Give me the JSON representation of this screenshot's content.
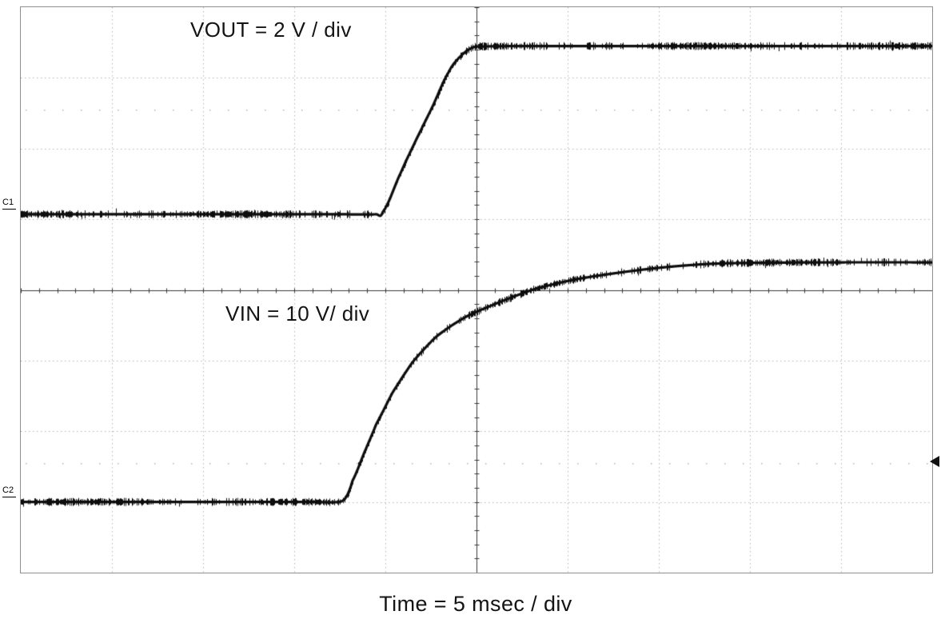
{
  "labels": {
    "vout": "VOUT = 2 V / div",
    "vin": "VIN = 10 V/ div",
    "time": "Time = 5 msec / div",
    "c1": "C1",
    "c2": "C2"
  },
  "chart_data": {
    "type": "line",
    "xlabel": "Time = 5 msec / div",
    "x_scale": {
      "per_div": 5,
      "units": "msec",
      "divisions": 10,
      "total_ms": 50
    },
    "grid": {
      "x_divisions": 10,
      "y_divisions": 8,
      "minor_ticks_per_div": 5,
      "dot_row_y_divs": [
        1.45,
        6.45
      ],
      "style": "dotted"
    },
    "series": [
      {
        "name": "C1",
        "label": "VOUT = 2 V / div",
        "volts_per_div": 2,
        "baseline_y_div": 2.93,
        "final_y_div": 0.55,
        "step_amplitude_volts_approx": 4.8,
        "rise_start_x_div": 3.95,
        "rise_end_x_div": 5.0,
        "noise_seed": 11,
        "points_div": [
          [
            0,
            2.93
          ],
          [
            2.0,
            2.93
          ],
          [
            3.5,
            2.93
          ],
          [
            3.9,
            2.93
          ],
          [
            3.97,
            2.9
          ],
          [
            4.17,
            2.34
          ],
          [
            4.34,
            1.87
          ],
          [
            4.52,
            1.4
          ],
          [
            4.69,
            0.93
          ],
          [
            4.82,
            0.7
          ],
          [
            4.96,
            0.57
          ],
          [
            5.1,
            0.555
          ],
          [
            5.5,
            0.55
          ],
          [
            7.5,
            0.55
          ],
          [
            10,
            0.55
          ]
        ]
      },
      {
        "name": "C2",
        "label": "VIN = 10 V/ div",
        "volts_per_div": 10,
        "baseline_y_div": 7.0,
        "final_y_div": 3.61,
        "step_amplitude_volts_approx": 34,
        "rise_start_x_div": 3.54,
        "settle_x_div": 8.0,
        "noise_seed": 29,
        "points_div": [
          [
            0,
            7.0
          ],
          [
            2.0,
            7.0
          ],
          [
            3.2,
            7.0
          ],
          [
            3.5,
            7.0
          ],
          [
            3.57,
            6.93
          ],
          [
            3.64,
            6.7
          ],
          [
            3.77,
            6.3
          ],
          [
            3.9,
            5.9
          ],
          [
            4.08,
            5.45
          ],
          [
            4.3,
            5.02
          ],
          [
            4.56,
            4.66
          ],
          [
            4.87,
            4.39
          ],
          [
            5.22,
            4.19
          ],
          [
            5.61,
            4.0
          ],
          [
            6.05,
            3.86
          ],
          [
            6.54,
            3.76
          ],
          [
            7.06,
            3.68
          ],
          [
            7.59,
            3.63
          ],
          [
            8.2,
            3.615
          ],
          [
            9.0,
            3.61
          ],
          [
            10,
            3.61
          ]
        ]
      }
    ],
    "marker": {
      "shape": "left-pointing-triangle",
      "x_div": 10,
      "y_div": 6.45
    },
    "colors": {
      "background": "#ffffff",
      "grid": "#b5b5b5",
      "axis": "#3a3a3a",
      "trace": "#0d0d0d",
      "text": "#141414"
    }
  }
}
